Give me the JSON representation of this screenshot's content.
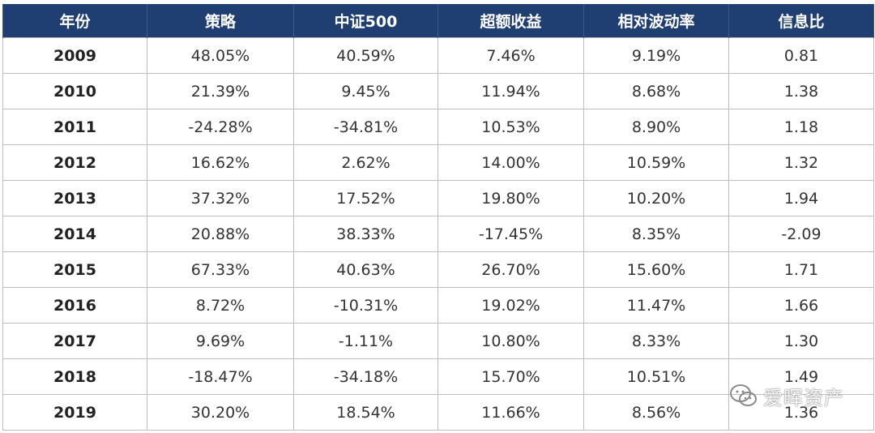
{
  "chart_data": {
    "type": "table",
    "columns": [
      "年份",
      "策略",
      "中证500",
      "超额收益",
      "相对波动率",
      "信息比"
    ],
    "rows": [
      [
        "2009",
        "48.05%",
        "40.59%",
        "7.46%",
        "9.19%",
        "0.81"
      ],
      [
        "2010",
        "21.39%",
        "9.45%",
        "11.94%",
        "8.68%",
        "1.38"
      ],
      [
        "2011",
        "-24.28%",
        "-34.81%",
        "10.53%",
        "8.90%",
        "1.18"
      ],
      [
        "2012",
        "16.62%",
        "2.62%",
        "14.00%",
        "10.59%",
        "1.32"
      ],
      [
        "2013",
        "37.32%",
        "17.52%",
        "19.80%",
        "10.20%",
        "1.94"
      ],
      [
        "2014",
        "20.88%",
        "38.33%",
        "-17.45%",
        "8.35%",
        "-2.09"
      ],
      [
        "2015",
        "67.33%",
        "40.63%",
        "26.70%",
        "15.60%",
        "1.71"
      ],
      [
        "2016",
        "8.72%",
        "-10.31%",
        "19.02%",
        "11.47%",
        "1.66"
      ],
      [
        "2017",
        "9.69%",
        "-1.11%",
        "10.80%",
        "8.33%",
        "1.30"
      ],
      [
        "2018",
        "-18.47%",
        "-34.18%",
        "15.70%",
        "10.51%",
        "1.49"
      ],
      [
        "2019",
        "30.20%",
        "18.54%",
        "11.66%",
        "8.56%",
        "1.36"
      ]
    ],
    "header_color": "#1f3e72"
  },
  "watermark": {
    "text": "爱晖资产",
    "icon": "wechat-icon"
  }
}
